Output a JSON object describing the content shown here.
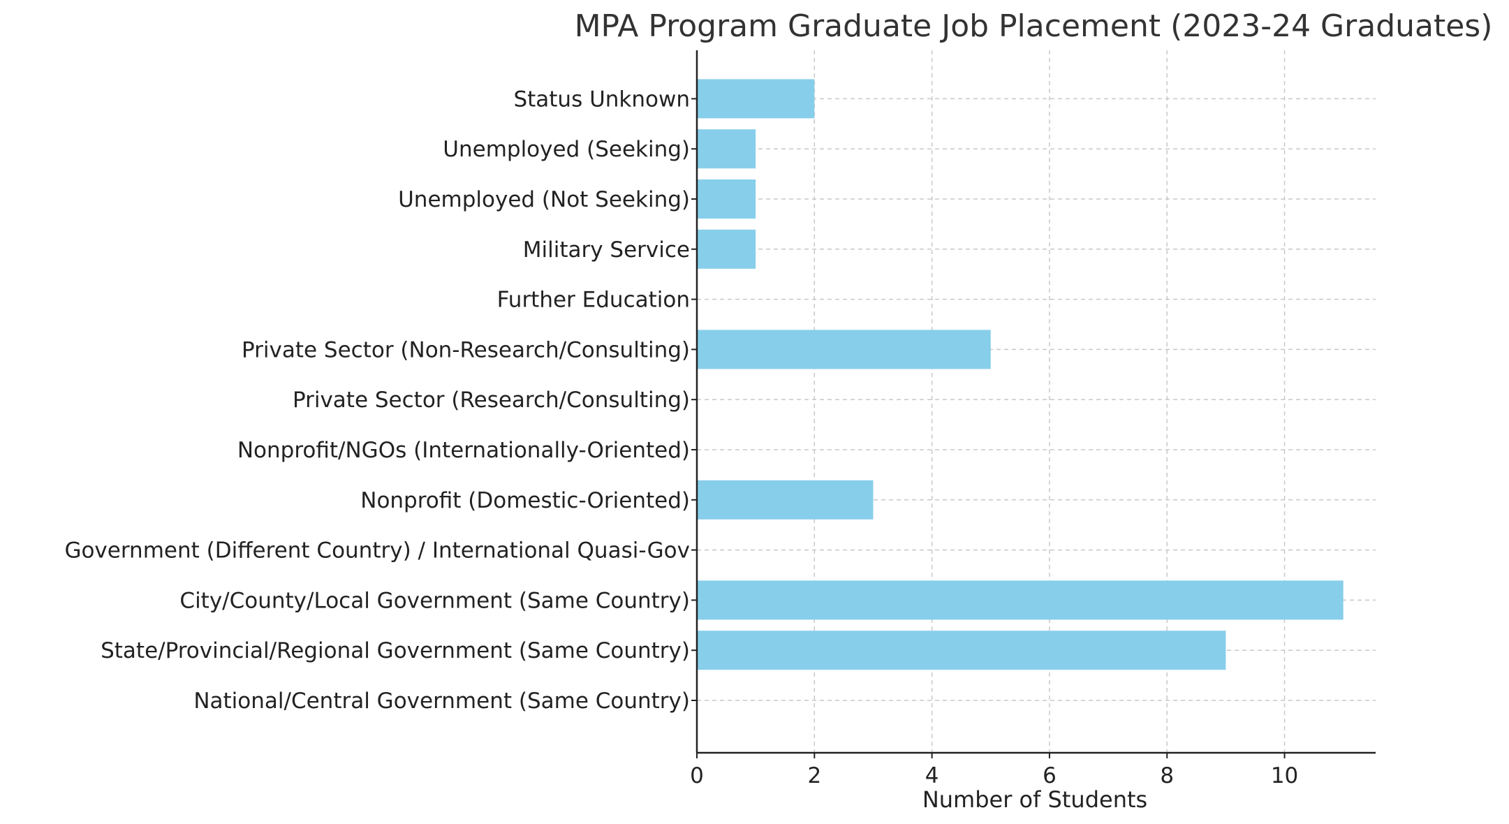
{
  "chart_data": {
    "type": "bar",
    "orientation": "horizontal",
    "title": "MPA Program Graduate Job Placement (2023-24 Graduates)",
    "xlabel": "Number of Students",
    "ylabel": "",
    "categories": [
      "National/Central Government (Same Country)",
      "State/Provincial/Regional Government (Same Country)",
      "City/County/Local Government (Same Country)",
      "Government (Different Country) / International Quasi-Gov",
      "Nonprofit (Domestic-Oriented)",
      "Nonprofit/NGOs (Internationally-Oriented)",
      "Private Sector (Research/Consulting)",
      "Private Sector (Non-Research/Consulting)",
      "Further Education",
      "Military Service",
      "Unemployed (Not Seeking)",
      "Unemployed (Seeking)",
      "Status Unknown"
    ],
    "values": [
      0,
      9,
      11,
      0,
      3,
      0,
      0,
      5,
      0,
      1,
      1,
      1,
      2
    ],
    "xlim": [
      0,
      11.55
    ],
    "xticks": [
      0,
      2,
      4,
      6,
      8,
      10
    ],
    "grid": true,
    "bar_color": "#87CEEB"
  }
}
